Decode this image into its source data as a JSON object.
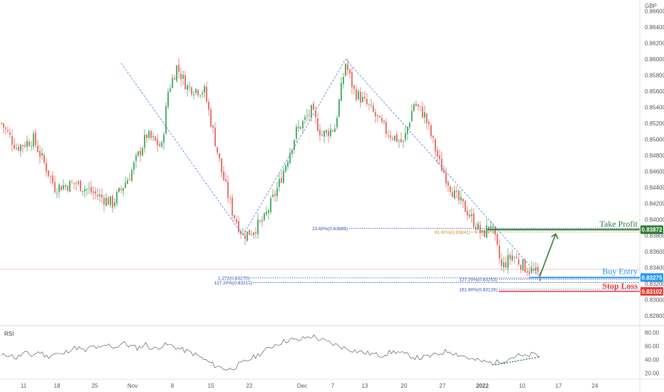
{
  "chart_data": {
    "type": "candlestick",
    "currency": "GBP",
    "price_axis": {
      "ylim": [
        0.827,
        0.8672
      ],
      "ticks": [
        "0.86600",
        "0.86400",
        "0.86200",
        "0.86000",
        "0.85800",
        "0.85600",
        "0.85400",
        "0.85200",
        "0.85000",
        "0.84800",
        "0.84600",
        "0.84400",
        "0.84200",
        "0.84000",
        "0.83800",
        "0.83600",
        "0.83400",
        "0.83200",
        "0.83000",
        "0.82800"
      ]
    },
    "time_axis": {
      "ticks": [
        "11",
        "18",
        "25",
        "Nov",
        "8",
        "15",
        "22",
        "Dec",
        "7",
        "13",
        "20",
        "27",
        "2022",
        "10",
        "17",
        "24"
      ]
    },
    "price_path": [
      {
        "bar": 0,
        "price": 0.852
      },
      {
        "bar": 7,
        "price": 0.849
      },
      {
        "bar": 15,
        "price": 0.85
      },
      {
        "bar": 25,
        "price": 0.844
      },
      {
        "bar": 35,
        "price": 0.8445
      },
      {
        "bar": 45,
        "price": 0.843
      },
      {
        "bar": 52,
        "price": 0.842
      },
      {
        "bar": 60,
        "price": 0.8455
      },
      {
        "bar": 68,
        "price": 0.8505
      },
      {
        "bar": 75,
        "price": 0.849
      },
      {
        "bar": 78,
        "price": 0.856
      },
      {
        "bar": 82,
        "price": 0.859
      },
      {
        "bar": 87,
        "price": 0.8565
      },
      {
        "bar": 95,
        "price": 0.856
      },
      {
        "bar": 103,
        "price": 0.846
      },
      {
        "bar": 108,
        "price": 0.841
      },
      {
        "bar": 113,
        "price": 0.838
      },
      {
        "bar": 117,
        "price": 0.8385
      },
      {
        "bar": 123,
        "price": 0.84
      },
      {
        "bar": 130,
        "price": 0.8445
      },
      {
        "bar": 138,
        "price": 0.851
      },
      {
        "bar": 145,
        "price": 0.8535
      },
      {
        "bar": 150,
        "price": 0.8505
      },
      {
        "bar": 156,
        "price": 0.8515
      },
      {
        "bar": 161,
        "price": 0.8595
      },
      {
        "bar": 165,
        "price": 0.856
      },
      {
        "bar": 172,
        "price": 0.854
      },
      {
        "bar": 180,
        "price": 0.851
      },
      {
        "bar": 188,
        "price": 0.8495
      },
      {
        "bar": 193,
        "price": 0.8545
      },
      {
        "bar": 198,
        "price": 0.853
      },
      {
        "bar": 205,
        "price": 0.847
      },
      {
        "bar": 212,
        "price": 0.843
      },
      {
        "bar": 218,
        "price": 0.841
      },
      {
        "bar": 225,
        "price": 0.838
      },
      {
        "bar": 229,
        "price": 0.8395
      },
      {
        "bar": 234,
        "price": 0.834
      },
      {
        "bar": 239,
        "price": 0.8355
      },
      {
        "bar": 245,
        "price": 0.834
      },
      {
        "bar": 252,
        "price": 0.833
      }
    ],
    "total_bars": 252,
    "fibonacci_levels": [
      {
        "label": "23.60%(0.83889)",
        "price": 0.83889
      },
      {
        "label": "61.80%(0.83841)",
        "price": 0.83841
      },
      {
        "label": "1.272(0.83270)",
        "price": 0.8327
      },
      {
        "label": "127.20%(0.83212)",
        "price": 0.83212
      },
      {
        "label": "127.20%(0.83253)",
        "price": 0.83253
      },
      {
        "label": "161.80%(0.83128)",
        "price": 0.83128
      }
    ],
    "annotations": {
      "take_profit": {
        "label": "Take Profit",
        "price": 0.83872,
        "badge": "0.83872"
      },
      "buy_entry": {
        "label": "Buy Entry",
        "price": 0.83275,
        "badge": "0.83275"
      },
      "stop_loss": {
        "label": "Stop Loss",
        "price": 0.83102,
        "badge": "0.83102"
      }
    },
    "rsi": {
      "label": "RSI",
      "ylim": [
        15,
        85
      ],
      "ticks": [
        "80.00",
        "60.00",
        "40.00",
        "20.00"
      ],
      "values": [
        45,
        48,
        42,
        50,
        46,
        52,
        44,
        49,
        47,
        55,
        58,
        52,
        60,
        56,
        62,
        58,
        65,
        60,
        57,
        63,
        55,
        60,
        62,
        58,
        54,
        50,
        45,
        38,
        32,
        28,
        25,
        30,
        36,
        42,
        48,
        55,
        62,
        66,
        70,
        68,
        72,
        75,
        70,
        66,
        62,
        58,
        55,
        52,
        50,
        48,
        46,
        50,
        52,
        48,
        45,
        42,
        44,
        46,
        50,
        53,
        48,
        45,
        40,
        38,
        36,
        35,
        38,
        42,
        46,
        44,
        48,
        45
      ]
    },
    "colors": {
      "up": "#2e9c4e",
      "down": "#e0574f",
      "fib_blue": "#2a4fb0",
      "fib_orange": "#d4882a",
      "take_profit": "#2e7d32",
      "buy_entry": "#2196f3",
      "stop_loss": "#e53935",
      "wave": "#4a7bd0"
    }
  }
}
